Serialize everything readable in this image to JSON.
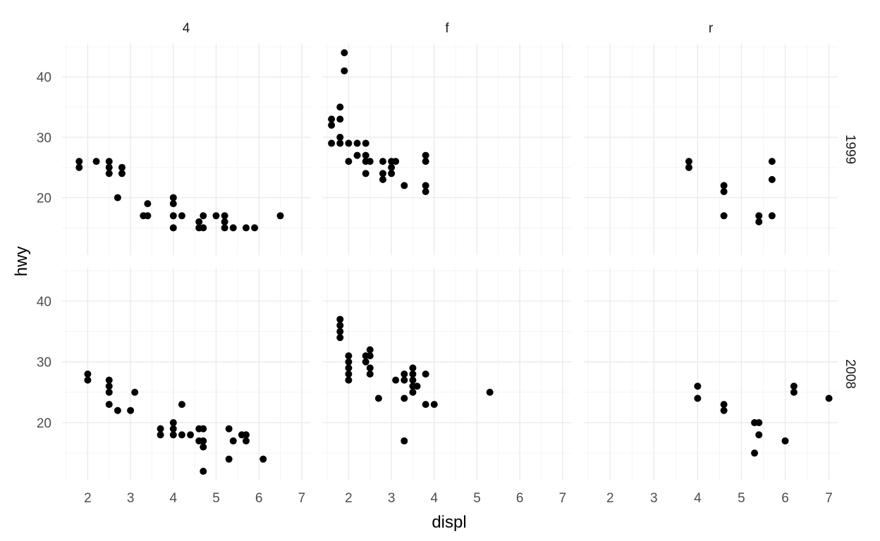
{
  "chart_data": {
    "type": "scatter",
    "facet_cols": [
      "4",
      "f",
      "r"
    ],
    "facet_rows": [
      "1999",
      "2008"
    ],
    "xlabel": "displ",
    "ylabel": "hwy",
    "xlim": [
      1.4,
      7.2
    ],
    "ylim": [
      10.5,
      45.5
    ],
    "x_ticks": [
      2,
      3,
      4,
      5,
      6,
      7
    ],
    "y_ticks": [
      20,
      30,
      40
    ],
    "grid": true,
    "facet_tick_labels": {
      "row1_y": [
        "40",
        "30",
        "20"
      ],
      "row2_y": [
        "40",
        "30",
        "20"
      ],
      "col1_x": [
        "2",
        "3",
        "4",
        "5",
        "6",
        "7"
      ],
      "col2_x": [
        "2",
        "3",
        "4",
        "5",
        "6",
        "7"
      ],
      "col3_x": [
        "2",
        "3",
        "4",
        "5",
        "6",
        "7"
      ]
    },
    "panels": [
      {
        "col": "4",
        "row": "1999",
        "points": [
          [
            1.8,
            26
          ],
          [
            1.8,
            25
          ],
          [
            2.2,
            26
          ],
          [
            2.5,
            26
          ],
          [
            2.5,
            25
          ],
          [
            2.5,
            24
          ],
          [
            2.8,
            25
          ],
          [
            2.8,
            24
          ],
          [
            2.7,
            20
          ],
          [
            3.3,
            17
          ],
          [
            3.4,
            19
          ],
          [
            3.4,
            17
          ],
          [
            4.0,
            20
          ],
          [
            4.0,
            19
          ],
          [
            4.0,
            17
          ],
          [
            4.0,
            15
          ],
          [
            4.2,
            17
          ],
          [
            4.6,
            16
          ],
          [
            4.6,
            15
          ],
          [
            4.7,
            17
          ],
          [
            4.7,
            15
          ],
          [
            5.0,
            17
          ],
          [
            5.2,
            17
          ],
          [
            5.2,
            16
          ],
          [
            5.2,
            15
          ],
          [
            5.4,
            15
          ],
          [
            5.7,
            15
          ],
          [
            5.9,
            15
          ],
          [
            6.5,
            17
          ]
        ]
      },
      {
        "col": "f",
        "row": "1999",
        "points": [
          [
            1.6,
            33
          ],
          [
            1.6,
            32
          ],
          [
            1.6,
            29
          ],
          [
            1.8,
            35
          ],
          [
            1.8,
            33
          ],
          [
            1.8,
            30
          ],
          [
            1.8,
            29
          ],
          [
            1.9,
            44
          ],
          [
            1.9,
            41
          ],
          [
            2.0,
            29
          ],
          [
            2.0,
            26
          ],
          [
            2.2,
            29
          ],
          [
            2.2,
            27
          ],
          [
            2.4,
            29
          ],
          [
            2.4,
            27
          ],
          [
            2.4,
            26
          ],
          [
            2.4,
            24
          ],
          [
            2.5,
            26
          ],
          [
            2.8,
            26
          ],
          [
            2.8,
            24
          ],
          [
            2.8,
            23
          ],
          [
            3.0,
            26
          ],
          [
            3.0,
            25
          ],
          [
            3.0,
            24
          ],
          [
            3.1,
            26
          ],
          [
            3.3,
            22
          ],
          [
            3.8,
            27
          ],
          [
            3.8,
            26
          ],
          [
            3.8,
            22
          ],
          [
            3.8,
            21
          ]
        ]
      },
      {
        "col": "r",
        "row": "1999",
        "points": [
          [
            3.8,
            26
          ],
          [
            3.8,
            25
          ],
          [
            4.6,
            22
          ],
          [
            4.6,
            21
          ],
          [
            4.6,
            17
          ],
          [
            5.4,
            17
          ],
          [
            5.4,
            16
          ],
          [
            5.7,
            26
          ],
          [
            5.7,
            23
          ],
          [
            5.7,
            17
          ]
        ]
      },
      {
        "col": "4",
        "row": "2008",
        "points": [
          [
            2.0,
            28
          ],
          [
            2.0,
            27
          ],
          [
            2.5,
            27
          ],
          [
            2.5,
            26
          ],
          [
            2.5,
            25
          ],
          [
            2.5,
            23
          ],
          [
            2.7,
            22
          ],
          [
            3.0,
            22
          ],
          [
            3.1,
            25
          ],
          [
            3.7,
            19
          ],
          [
            3.7,
            18
          ],
          [
            4.0,
            20
          ],
          [
            4.0,
            19
          ],
          [
            4.0,
            18
          ],
          [
            4.2,
            23
          ],
          [
            4.2,
            18
          ],
          [
            4.4,
            18
          ],
          [
            4.6,
            19
          ],
          [
            4.6,
            17
          ],
          [
            4.7,
            19
          ],
          [
            4.7,
            17
          ],
          [
            4.7,
            16
          ],
          [
            4.7,
            12
          ],
          [
            5.3,
            19
          ],
          [
            5.3,
            14
          ],
          [
            5.4,
            17
          ],
          [
            5.6,
            18
          ],
          [
            5.7,
            18
          ],
          [
            5.7,
            17
          ],
          [
            6.1,
            14
          ]
        ]
      },
      {
        "col": "f",
        "row": "2008",
        "points": [
          [
            1.8,
            37
          ],
          [
            1.8,
            36
          ],
          [
            1.8,
            35
          ],
          [
            1.8,
            34
          ],
          [
            2.0,
            31
          ],
          [
            2.0,
            30
          ],
          [
            2.0,
            29
          ],
          [
            2.0,
            28
          ],
          [
            2.0,
            27
          ],
          [
            2.4,
            31
          ],
          [
            2.4,
            30
          ],
          [
            2.5,
            32
          ],
          [
            2.5,
            31
          ],
          [
            2.5,
            29
          ],
          [
            2.5,
            28
          ],
          [
            2.7,
            24
          ],
          [
            3.1,
            27
          ],
          [
            3.3,
            28
          ],
          [
            3.3,
            27
          ],
          [
            3.3,
            24
          ],
          [
            3.3,
            17
          ],
          [
            3.5,
            29
          ],
          [
            3.5,
            28
          ],
          [
            3.5,
            27
          ],
          [
            3.5,
            26
          ],
          [
            3.5,
            25
          ],
          [
            3.6,
            26
          ],
          [
            3.8,
            28
          ],
          [
            3.8,
            23
          ],
          [
            4.0,
            23
          ],
          [
            5.3,
            25
          ]
        ]
      },
      {
        "col": "r",
        "row": "2008",
        "points": [
          [
            4.0,
            26
          ],
          [
            4.0,
            24
          ],
          [
            4.6,
            23
          ],
          [
            4.6,
            22
          ],
          [
            5.3,
            20
          ],
          [
            5.3,
            15
          ],
          [
            5.4,
            20
          ],
          [
            5.4,
            18
          ],
          [
            6.0,
            17
          ],
          [
            6.2,
            26
          ],
          [
            6.2,
            25
          ],
          [
            7.0,
            24
          ]
        ]
      }
    ]
  }
}
